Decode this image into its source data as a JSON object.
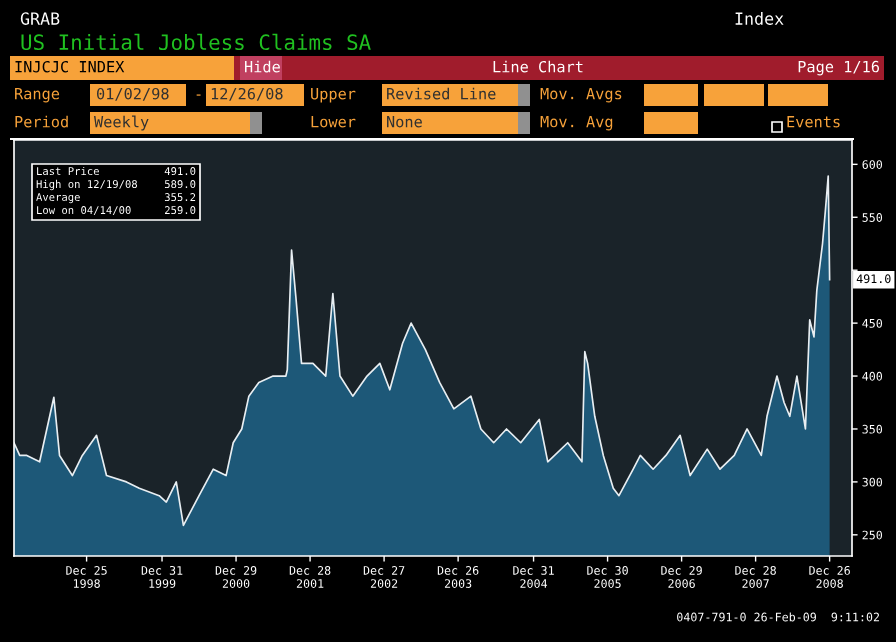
{
  "chart_data": {
    "type": "area",
    "title": "US Initial Jobless Claims SA",
    "x": [
      "1998-01-02",
      "1998-01-30",
      "1998-03-06",
      "1998-05-08",
      "1998-07-17",
      "1998-08-14",
      "1998-10-16",
      "1998-12-04",
      "1999-02-12",
      "1999-04-02",
      "1999-07-09",
      "1999-09-10",
      "1999-12-17",
      "2000-01-21",
      "2000-03-10",
      "2000-04-14",
      "2000-06-30",
      "2000-09-08",
      "2000-11-10",
      "2000-12-15",
      "2001-01-26",
      "2001-03-02",
      "2001-04-20",
      "2001-06-29",
      "2001-08-31",
      "2001-09-07",
      "2001-09-28",
      "2001-10-19",
      "2001-11-16",
      "2002-01-11",
      "2002-03-15",
      "2002-04-19",
      "2002-05-24",
      "2002-07-26",
      "2002-10-04",
      "2002-12-06",
      "2003-01-24",
      "2003-03-28",
      "2003-05-09",
      "2003-07-18",
      "2003-09-26",
      "2003-12-05",
      "2004-02-27",
      "2004-04-16",
      "2004-06-18",
      "2004-08-20",
      "2004-10-29",
      "2005-01-28",
      "2005-03-11",
      "2005-06-17",
      "2005-08-26",
      "2005-09-09",
      "2005-09-23",
      "2005-10-28",
      "2005-12-09",
      "2006-01-27",
      "2006-02-24",
      "2006-05-05",
      "2006-06-09",
      "2006-08-11",
      "2006-10-13",
      "2006-12-22",
      "2007-02-09",
      "2007-05-04",
      "2007-07-06",
      "2007-09-14",
      "2007-11-16",
      "2008-01-25",
      "2008-02-22",
      "2008-04-11",
      "2008-05-16",
      "2008-06-13",
      "2008-07-18",
      "2008-08-29",
      "2008-09-19",
      "2008-10-10",
      "2008-10-24",
      "2008-11-21",
      "2008-12-05",
      "2008-12-19",
      "2008-12-26"
    ],
    "series": [
      {
        "color": "#1d5878",
        "values": [
          337,
          325,
          325,
          319,
          380,
          325,
          306,
          325,
          344,
          306,
          300,
          294,
          287,
          281,
          300,
          259,
          287,
          312,
          306,
          337,
          350,
          381,
          394,
          400,
          400,
          406,
          519,
          475,
          412,
          412,
          400,
          478,
          400,
          381,
          400,
          412,
          387,
          431,
          450,
          425,
          394,
          369,
          381,
          350,
          337,
          350,
          337,
          359,
          319,
          337,
          319,
          423,
          412,
          362,
          325,
          294,
          287,
          312,
          325,
          312,
          325,
          344,
          306,
          331,
          312,
          325,
          350,
          325,
          362,
          400,
          375,
          362,
          400,
          350,
          453,
          437,
          481,
          525,
          556,
          589,
          491
        ]
      }
    ],
    "xlim": [
      "1998-01-02",
      "2009-04-15"
    ],
    "xticks": [
      {
        "value": "1998-12-25",
        "label": "Dec 25\n1998"
      },
      {
        "value": "1999-12-31",
        "label": "Dec 31\n1999"
      },
      {
        "value": "2000-12-29",
        "label": "Dec 29\n2000"
      },
      {
        "value": "2001-12-28",
        "label": "Dec 28\n2001"
      },
      {
        "value": "2002-12-27",
        "label": "Dec 27\n2002"
      },
      {
        "value": "2003-12-26",
        "label": "Dec 26\n2003"
      },
      {
        "value": "2004-12-31",
        "label": "Dec 31\n2004"
      },
      {
        "value": "2005-12-30",
        "label": "Dec 30\n2005"
      },
      {
        "value": "2006-12-29",
        "label": "Dec 29\n2006"
      },
      {
        "value": "2007-12-28",
        "label": "Dec 28\n2007"
      },
      {
        "value": "2008-12-26",
        "label": "Dec 26\n2008"
      }
    ],
    "ylim": [
      230,
      623
    ],
    "yticks": [
      250,
      300,
      350,
      400,
      450,
      {
        "value": 500,
        "label": null
      },
      550,
      600
    ],
    "annotations": [
      "GRAB",
      "Index",
      "INJCJC INDEX",
      "Hide",
      "Line Chart",
      "Page 1/16",
      "Range",
      "01/02/98",
      "-",
      "12/26/08",
      "Upper",
      "Revised Line",
      "Mov. Avgs",
      "Period",
      "Weekly",
      "Lower",
      "None",
      "Mov. Avg",
      "Events",
      "Last Price",
      "491.0",
      "High on 12/19/08",
      "589.0",
      "Average",
      "355.2",
      "Low on 04/14/00",
      "259.0",
      "0407-791-0 26-Feb-09  9:11:02",
      {
        "text": "491.0",
        "x": "2008-12-26",
        "y": 491
      }
    ]
  }
}
